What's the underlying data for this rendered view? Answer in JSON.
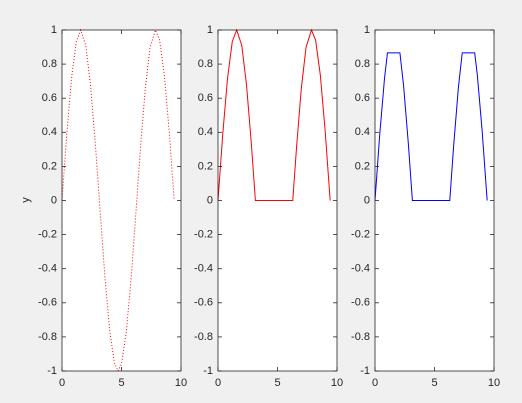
{
  "figure": {
    "background": "#f0f0f0"
  },
  "chart_data": [
    {
      "type": "line",
      "ylabel": "y",
      "xlim": [
        0,
        10
      ],
      "ylim": [
        -1,
        1
      ],
      "xticks": [
        0,
        5,
        10
      ],
      "yticks": [
        -1,
        -0.8,
        -0.6,
        -0.4,
        -0.2,
        0,
        0.2,
        0.4,
        0.6,
        0.8,
        1
      ],
      "series": [
        {
          "color": "#ff0000",
          "style": "dotted",
          "x": [
            0,
            0.4,
            0.8,
            1.2,
            1.571,
            2.0,
            2.4,
            2.8,
            3.2,
            3.6,
            4.0,
            4.4,
            4.712,
            5.0,
            5.4,
            5.8,
            6.2,
            6.6,
            7.0,
            7.4,
            7.854,
            8.2,
            8.6,
            9.0,
            9.425
          ],
          "y": [
            0,
            0.389,
            0.717,
            0.932,
            1.0,
            0.909,
            0.675,
            0.335,
            -0.058,
            -0.443,
            -0.757,
            -0.952,
            -1.0,
            -0.959,
            -0.773,
            -0.465,
            -0.083,
            0.312,
            0.657,
            0.899,
            1.0,
            0.941,
            0.735,
            0.412,
            0.0
          ]
        }
      ]
    },
    {
      "type": "line",
      "xlim": [
        0,
        10
      ],
      "ylim": [
        -1,
        1
      ],
      "xticks": [
        0,
        5,
        10
      ],
      "yticks": [
        -1,
        -0.8,
        -0.6,
        -0.4,
        -0.2,
        0,
        0.2,
        0.4,
        0.6,
        0.8,
        1
      ],
      "series": [
        {
          "color": "#ff0000",
          "style": "solid",
          "x": [
            0,
            0.4,
            0.8,
            1.2,
            1.571,
            2.0,
            2.4,
            2.8,
            3.142,
            4.0,
            5.0,
            6.0,
            6.283,
            6.6,
            7.0,
            7.4,
            7.854,
            8.2,
            8.6,
            9.0,
            9.425
          ],
          "y": [
            0,
            0.389,
            0.717,
            0.932,
            1.0,
            0.909,
            0.675,
            0.335,
            0,
            0,
            0,
            0,
            0,
            0.312,
            0.657,
            0.899,
            1.0,
            0.941,
            0.735,
            0.412,
            0.0
          ]
        }
      ]
    },
    {
      "type": "line",
      "xlim": [
        0,
        10
      ],
      "ylim": [
        -1,
        1
      ],
      "xticks": [
        0,
        5,
        10
      ],
      "yticks": [
        -1,
        -0.8,
        -0.6,
        -0.4,
        -0.2,
        0,
        0.2,
        0.4,
        0.6,
        0.8,
        1
      ],
      "series": [
        {
          "color": "#0000ff",
          "style": "solid",
          "x": [
            0,
            0.4,
            0.8,
            1.047,
            2.094,
            2.4,
            2.8,
            3.142,
            4.0,
            5.0,
            6.0,
            6.283,
            6.6,
            7.0,
            7.33,
            8.378,
            8.6,
            9.0,
            9.425
          ],
          "y": [
            0,
            0.389,
            0.717,
            0.866,
            0.866,
            0.675,
            0.335,
            0,
            0,
            0,
            0,
            0,
            0.312,
            0.657,
            0.866,
            0.866,
            0.735,
            0.412,
            0.0
          ]
        }
      ]
    }
  ]
}
